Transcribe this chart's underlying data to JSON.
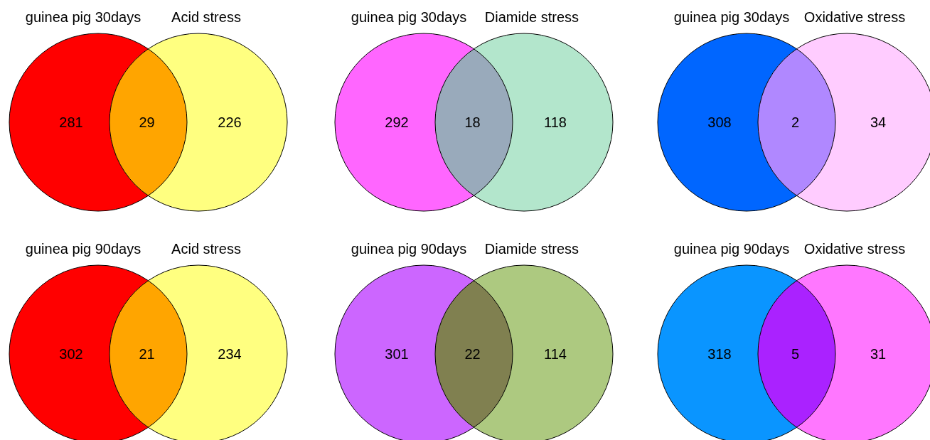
{
  "chart_data": [
    {
      "type": "other",
      "annotations": [
        "guinea pig 30days",
        "Acid stress"
      ],
      "categories": [
        null,
        null,
        null
      ],
      "values": [
        281,
        29,
        226
      ],
      "data_labels": true,
      "colors": [
        "#ff0000",
        "#ffa500",
        "#ffff80"
      ]
    },
    {
      "type": "other",
      "annotations": [
        "guinea pig 30days",
        "Diamide stress"
      ],
      "categories": [
        null,
        null,
        null
      ],
      "values": [
        292,
        18,
        118
      ],
      "data_labels": true,
      "colors": [
        "#ff66ff",
        "#99aabb",
        "#b3e6cc"
      ]
    },
    {
      "type": "other",
      "annotations": [
        "guinea pig 30days",
        "Oxidative stress"
      ],
      "categories": [
        null,
        null,
        null
      ],
      "values": [
        308,
        2,
        34
      ],
      "data_labels": true,
      "colors": [
        "#0066ff",
        "#b088ff",
        "#ffccff"
      ]
    },
    {
      "type": "other",
      "annotations": [
        "guinea pig 90days",
        "Acid stress"
      ],
      "categories": [
        null,
        null,
        null
      ],
      "values": [
        302,
        21,
        234
      ],
      "data_labels": true,
      "colors": [
        "#ff0000",
        "#ffa500",
        "#ffff80"
      ]
    },
    {
      "type": "other",
      "annotations": [
        "guinea pig 90days",
        "Diamide stress"
      ],
      "categories": [
        null,
        null,
        null
      ],
      "values": [
        301,
        22,
        114
      ],
      "data_labels": true,
      "colors": [
        "#cc66ff",
        "#808050",
        "#adc980"
      ]
    },
    {
      "type": "other",
      "annotations": [
        "guinea pig 90days",
        "Oxidative stress"
      ],
      "categories": [
        null,
        null,
        null
      ],
      "values": [
        318,
        5,
        31
      ],
      "data_labels": true,
      "colors": [
        "#0a95ff",
        "#aa22ff",
        "#ff77ff"
      ]
    }
  ]
}
